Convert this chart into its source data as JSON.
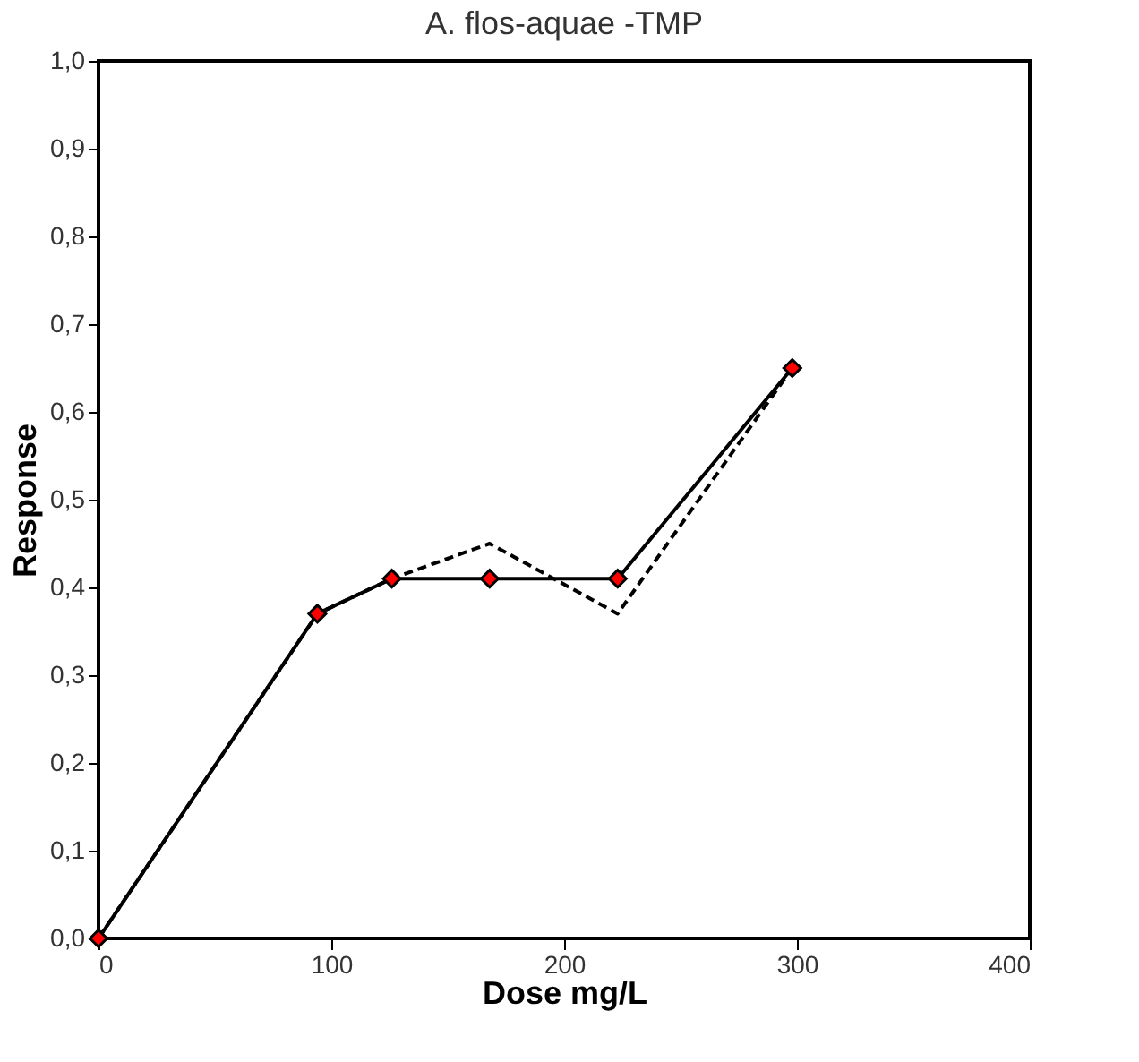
{
  "chart_data": {
    "type": "line",
    "title": "A. flos-aquae -TMP",
    "xlabel": "Dose mg/L",
    "ylabel": "Response",
    "xlim": [
      0,
      400
    ],
    "xticks": [
      0,
      100,
      200,
      300,
      400
    ],
    "ylim": [
      0,
      1.0
    ],
    "yticks": [
      {
        "value": 0,
        "label": "0,0"
      },
      {
        "value": 0.1,
        "label": "0,1"
      },
      {
        "value": 0.2,
        "label": "0,2"
      },
      {
        "value": 0.3,
        "label": "0,3"
      },
      {
        "value": 0.4,
        "label": "0,4"
      },
      {
        "value": 0.5,
        "label": "0,5"
      },
      {
        "value": 0.6,
        "label": "0,6"
      },
      {
        "value": 0.7,
        "label": "0,7"
      },
      {
        "value": 0.8,
        "label": "0,8"
      },
      {
        "value": 0.9,
        "label": "0,9"
      },
      {
        "value": 1.0,
        "label": "1,0"
      }
    ],
    "grid": false,
    "legend": false,
    "series": [
      {
        "color": "#000000",
        "x": [
          0,
          94,
          126,
          168,
          223,
          298
        ],
        "values": [
          0,
          0.37,
          0.41,
          0.41,
          0.41,
          0.65
        ],
        "marker": "diamond",
        "line_style": "solid"
      },
      {
        "color": "#000000",
        "x": [
          0,
          94,
          126,
          168,
          223,
          298
        ],
        "values": [
          0,
          0.37,
          0.41,
          0.45,
          0.37,
          0.65
        ],
        "marker": "none",
        "line_style": "dashed"
      }
    ]
  }
}
